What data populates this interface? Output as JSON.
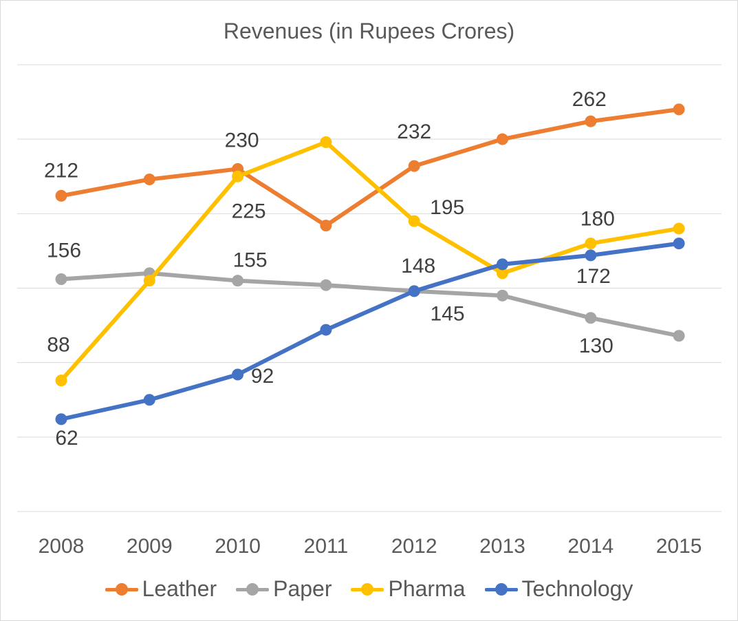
{
  "chart_data": {
    "type": "line",
    "title": "Revenues (in Rupees Crores)",
    "categories": [
      "2008",
      "2009",
      "2010",
      "2011",
      "2012",
      "2013",
      "2014",
      "2015"
    ],
    "ylim": [
      0,
      300
    ],
    "grid": true,
    "legend_position": "bottom",
    "series": [
      {
        "name": "Leather",
        "color": "#ED7D31",
        "values": [
          212,
          223,
          230,
          192,
          232,
          250,
          262,
          270
        ],
        "labels": [
          "212",
          "",
          "230",
          "",
          "232",
          "",
          "262",
          ""
        ]
      },
      {
        "name": "Paper",
        "color": "#A5A5A5",
        "values": [
          156,
          160,
          155,
          152,
          148,
          145,
          130,
          118
        ],
        "labels": [
          "156",
          "",
          "155",
          "",
          "148",
          "145",
          "130",
          ""
        ]
      },
      {
        "name": "Pharma",
        "color": "#FFC000",
        "values": [
          88,
          155,
          225,
          248,
          195,
          160,
          180,
          190
        ],
        "labels": [
          "88",
          "",
          "225",
          "",
          "195",
          "",
          "180",
          ""
        ]
      },
      {
        "name": "Technology",
        "color": "#4472C4",
        "values": [
          62,
          75,
          92,
          122,
          148,
          166,
          172,
          180
        ],
        "labels": [
          "62",
          "",
          "92",
          "",
          "",
          "",
          "172",
          ""
        ]
      }
    ]
  }
}
